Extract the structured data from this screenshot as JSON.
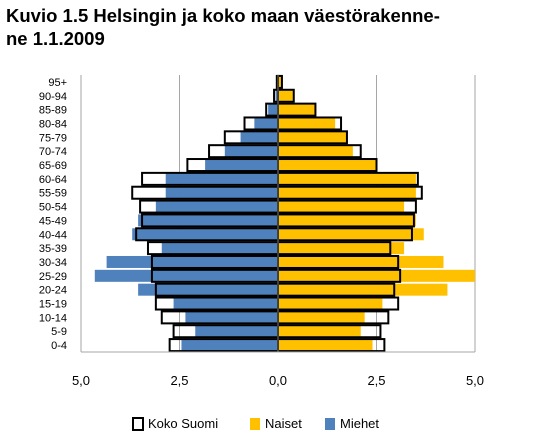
{
  "chart_data": {
    "type": "bar",
    "title_lines": [
      "Kuvio 1.5 Helsingin ja koko maan väestörakenne-",
      "ne 1.1.2009"
    ],
    "categories": [
      "0-4",
      "5-9",
      "10-14",
      "15-19",
      "20-24",
      "25-29",
      "30-34",
      "35-39",
      "40-44",
      "45-49",
      "50-54",
      "55-59",
      "60-64",
      "65-69",
      "70-74",
      "75-79",
      "80-84",
      "85-89",
      "90-94",
      "95+"
    ],
    "series": [
      {
        "name": "Koko Suomi",
        "color": "#ffffff",
        "outline": "#000000",
        "left": [
          2.75,
          2.65,
          2.95,
          3.1,
          3.1,
          3.2,
          3.2,
          3.3,
          3.6,
          3.45,
          3.5,
          3.7,
          3.45,
          2.3,
          1.75,
          1.35,
          0.85,
          0.3,
          0.1,
          0.03
        ],
        "right": [
          2.7,
          2.6,
          2.8,
          3.05,
          2.95,
          3.1,
          3.05,
          2.85,
          3.4,
          3.45,
          3.5,
          3.65,
          3.55,
          2.5,
          2.1,
          1.75,
          1.6,
          0.95,
          0.4,
          0.1
        ]
      },
      {
        "name": "Naiset",
        "color": "#ffc000",
        "right": [
          2.4,
          2.1,
          2.2,
          2.65,
          4.3,
          5.0,
          4.2,
          3.2,
          3.7,
          3.5,
          3.2,
          3.5,
          3.5,
          2.5,
          1.9,
          1.75,
          1.45,
          0.95,
          0.4,
          0.1
        ]
      },
      {
        "name": "Miehet",
        "color": "#4f81bd",
        "left": [
          2.45,
          2.1,
          2.35,
          2.65,
          3.55,
          4.65,
          4.35,
          2.95,
          3.7,
          3.55,
          3.1,
          2.85,
          2.85,
          1.85,
          1.35,
          0.95,
          0.6,
          0.25,
          0.06,
          0.02
        ]
      }
    ],
    "x_ticks": [
      "5,0",
      "2,5",
      "0,0",
      "2,5",
      "5,0"
    ],
    "xlim": [
      -5,
      5
    ],
    "grid": true,
    "legend_position": "bottom"
  }
}
